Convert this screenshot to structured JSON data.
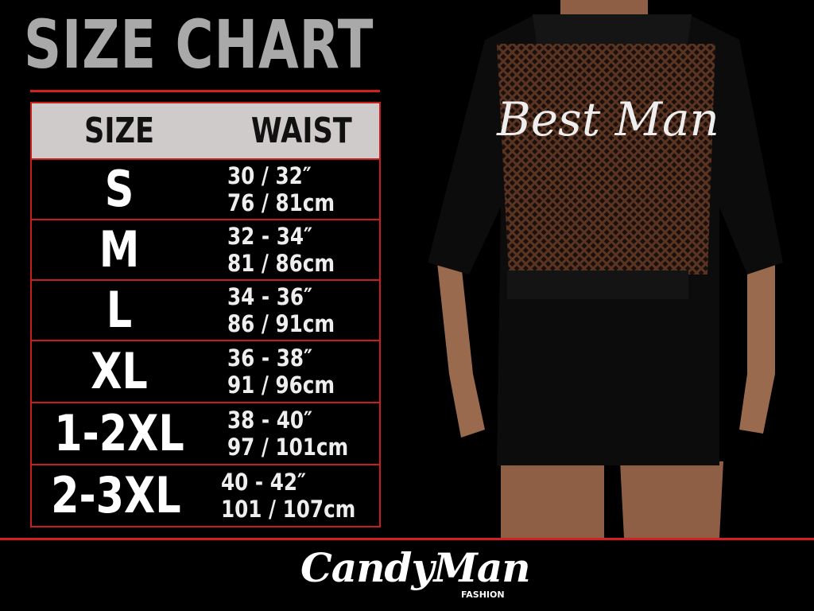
{
  "title": "SIZE CHART",
  "table": {
    "headers": [
      "SIZE",
      "WAIST"
    ],
    "rows": [
      {
        "size": "S",
        "inches": "30 / 32″",
        "cm": "76 / 81cm"
      },
      {
        "size": "M",
        "inches": "32 - 34″",
        "cm": "81 / 86cm"
      },
      {
        "size": "L",
        "inches": "34 - 36″",
        "cm": "86 / 91cm"
      },
      {
        "size": "XL",
        "inches": "36 - 38″",
        "cm": "91 / 96cm"
      },
      {
        "size": "1-2XL",
        "inches": "38 - 40″",
        "cm": "97 / 101cm"
      },
      {
        "size": "2-3XL",
        "inches": "40 - 42″",
        "cm": "101 / 107cm"
      }
    ]
  },
  "product": {
    "garment_text": "Best Man"
  },
  "brand": {
    "name": "CandyMan",
    "sub": "FASHION"
  },
  "colors": {
    "accent": "#d61f1f",
    "header_bg": "#cfcbcb",
    "title": "#a9a9a9",
    "background": "#000000"
  }
}
